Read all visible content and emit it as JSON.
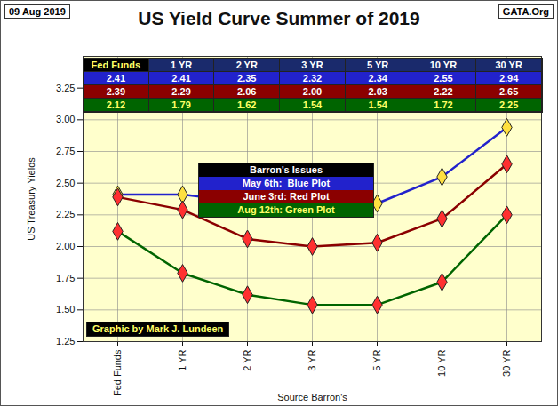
{
  "chart_data": {
    "type": "line",
    "title": "US Yield Curve Summer of 2019",
    "annotations": [
      "09 Aug 2019",
      "GATA.Org",
      "Graphic by Mark J. Lundeen"
    ],
    "legend_title": "Barron's Issues",
    "x_label": "Source Barron's",
    "y_label": "US Treasury Yields",
    "categories": [
      "Fed Funds",
      "1 YR",
      "2 YR",
      "3 YR",
      "5 YR",
      "10 YR",
      "30 YR"
    ],
    "series": [
      {
        "name": "May 6th:  Blue Plot",
        "color": "#2222cc",
        "marker": "diamond",
        "values": [
          2.41,
          2.41,
          2.35,
          2.32,
          2.34,
          2.55,
          2.94
        ],
        "value_labels": [
          "2.41",
          "2.41",
          "2.35",
          "2.32",
          "2.34",
          "2.55",
          "2.94"
        ]
      },
      {
        "name": "June 3rd: Red Plot",
        "color": "#8b0000",
        "marker": "diamond",
        "values": [
          2.39,
          2.29,
          2.06,
          2.0,
          2.03,
          2.22,
          2.65
        ],
        "value_labels": [
          "2.39",
          "2.29",
          "2.06",
          "2.00",
          "2.03",
          "2.22",
          "2.65"
        ]
      },
      {
        "name": "Aug 12th: Green Plot",
        "color": "#006400",
        "marker": "diamond",
        "values": [
          2.12,
          1.79,
          1.62,
          1.54,
          1.54,
          1.72,
          2.25
        ],
        "value_labels": [
          "2.12",
          "1.79",
          "1.62",
          "1.54",
          "1.54",
          "1.72",
          "2.25"
        ]
      }
    ],
    "ylim": [
      1.25,
      3.5
    ],
    "yticks": [
      {
        "value": 1.25,
        "label": "1.25"
      },
      {
        "value": 1.5,
        "label": "1.50"
      },
      {
        "value": 1.75,
        "label": "1.75"
      },
      {
        "value": 2.0,
        "label": "2.00"
      },
      {
        "value": 2.25,
        "label": "2.25"
      },
      {
        "value": 2.5,
        "label": "2.50"
      },
      {
        "value": 2.75,
        "label": "2.75"
      },
      {
        "value": 3.0,
        "label": "3.00"
      },
      {
        "value": 3.25,
        "label": "3.25"
      }
    ],
    "grid": true,
    "data_labels": true,
    "legend": "top"
  }
}
